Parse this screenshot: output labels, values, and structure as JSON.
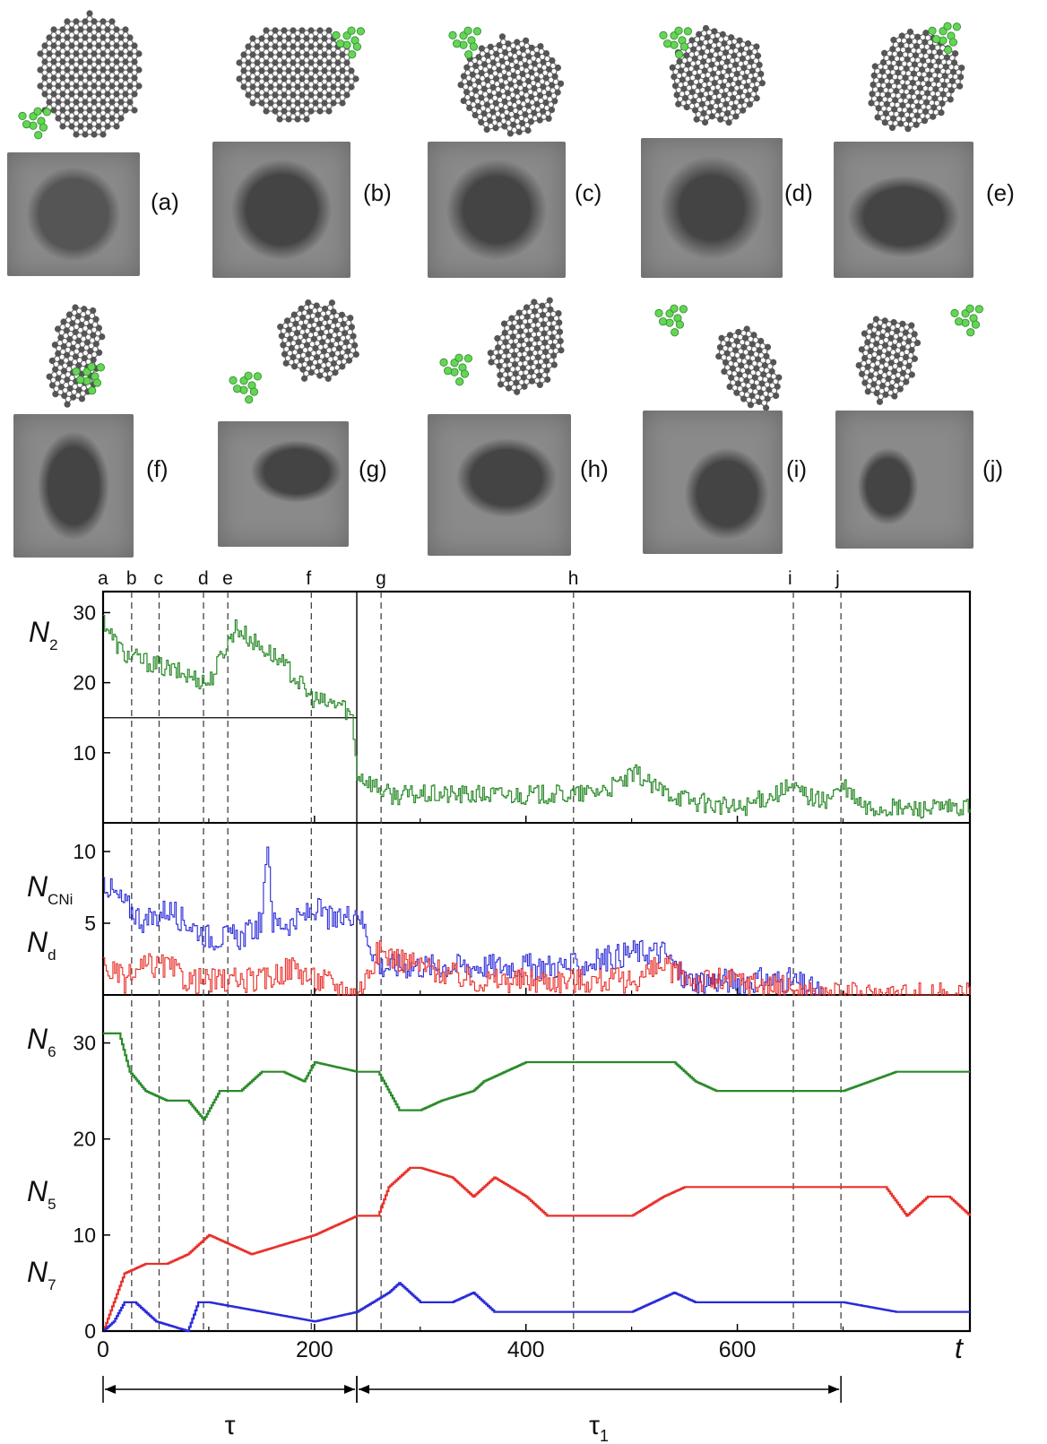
{
  "panels": [
    {
      "id": "a",
      "label": "(a)"
    },
    {
      "id": "b",
      "label": "(b)"
    },
    {
      "id": "c",
      "label": "(c)"
    },
    {
      "id": "d",
      "label": "(d)"
    },
    {
      "id": "e",
      "label": "(e)"
    },
    {
      "id": "f",
      "label": "(f)"
    },
    {
      "id": "g",
      "label": "(g)"
    },
    {
      "id": "h",
      "label": "(h)"
    },
    {
      "id": "i",
      "label": "(i)"
    },
    {
      "id": "j",
      "label": "(j)"
    }
  ],
  "colors": {
    "green": "#2a8a2a",
    "red": "#e8302a",
    "blue": "#2a2ad8",
    "atom": "#555555",
    "atom_green": "#66d455",
    "tem_bg": "#8a8a8a"
  },
  "chart_data": [
    {
      "type": "line",
      "series": [
        {
          "name": "",
          "color": "green",
          "x": [
            0,
            10,
            20,
            40,
            60,
            80,
            100,
            115,
            125,
            140,
            160,
            180,
            195,
            210,
            225,
            235,
            240,
            250,
            270,
            300,
            350,
            400,
            450,
            480,
            505,
            520,
            560,
            600,
            650,
            680,
            700,
            720,
            760,
            800,
            820
          ],
          "y": [
            29,
            26,
            24,
            23,
            22,
            21,
            20,
            25,
            28,
            26,
            24,
            21,
            18,
            17,
            17,
            15,
            7,
            6,
            4,
            4,
            4,
            4,
            4,
            5,
            7,
            5,
            3,
            2,
            5,
            3,
            5,
            2,
            2,
            2,
            2
          ]
        }
      ],
      "ylabel": "N2",
      "yticks": [
        10,
        20,
        30
      ],
      "ylim": [
        0,
        33
      ],
      "reference_line": {
        "y": 15,
        "x": [
          0,
          240
        ]
      },
      "event_markers": [
        {
          "label": "a",
          "x": 0
        },
        {
          "label": "b",
          "x": 27
        },
        {
          "label": "c",
          "x": 53
        },
        {
          "label": "d",
          "x": 95
        },
        {
          "label": "e",
          "x": 118
        },
        {
          "label": "f",
          "x": 197
        },
        {
          "label": "g",
          "x": 263
        },
        {
          "label": "h",
          "x": 445
        },
        {
          "label": "i",
          "x": 653
        },
        {
          "label": "j",
          "x": 698
        }
      ],
      "divider_x": 240
    },
    {
      "type": "line",
      "series": [
        {
          "name": "",
          "color": "blue",
          "x": [
            0,
            10,
            25,
            40,
            60,
            80,
            100,
            130,
            150,
            155,
            160,
            180,
            200,
            220,
            240,
            250,
            260,
            270,
            300,
            350,
            400,
            450,
            500,
            530,
            550,
            600,
            650,
            680
          ],
          "y": [
            8,
            7,
            6,
            5,
            6,
            5,
            4,
            4,
            5,
            11,
            5,
            5,
            6,
            5,
            6,
            4,
            2,
            2,
            2,
            2,
            2,
            2,
            3,
            3,
            1,
            1,
            1,
            0
          ]
        },
        {
          "name": "",
          "color": "red",
          "x": [
            0,
            20,
            40,
            60,
            80,
            100,
            130,
            150,
            180,
            200,
            210,
            240,
            260,
            300,
            350,
            400,
            450,
            500,
            530,
            560,
            600,
            680,
            820
          ],
          "y": [
            2,
            1,
            2,
            2,
            1,
            1,
            1,
            1,
            2,
            1,
            1,
            0,
            3,
            2,
            1,
            1,
            1,
            1,
            2,
            1,
            1,
            0,
            0
          ]
        }
      ],
      "ylabels": [
        "NCNi",
        "Nd"
      ],
      "yticks": [
        5,
        10
      ],
      "ylim": [
        0,
        12
      ]
    },
    {
      "type": "line",
      "series": [
        {
          "name": "",
          "color": "green",
          "x": [
            0,
            15,
            25,
            40,
            60,
            80,
            95,
            110,
            130,
            150,
            170,
            190,
            200,
            240,
            260,
            280,
            300,
            320,
            350,
            360,
            400,
            450,
            500,
            540,
            560,
            580,
            600,
            610,
            650,
            700,
            750,
            800,
            820
          ],
          "y": [
            31,
            31,
            27,
            25,
            24,
            24,
            22,
            25,
            25,
            27,
            27,
            26,
            28,
            27,
            27,
            23,
            23,
            24,
            25,
            26,
            28,
            28,
            28,
            28,
            26,
            25,
            25,
            25,
            25,
            25,
            27,
            27,
            27
          ]
        },
        {
          "name": "",
          "color": "red",
          "x": [
            0,
            10,
            20,
            40,
            60,
            80,
            100,
            120,
            140,
            170,
            200,
            240,
            260,
            270,
            290,
            300,
            330,
            350,
            370,
            400,
            420,
            450,
            500,
            530,
            550,
            600,
            620,
            650,
            700,
            740,
            760,
            780,
            800,
            820
          ],
          "y": [
            0,
            3,
            6,
            7,
            7,
            8,
            10,
            9,
            8,
            9,
            10,
            12,
            12,
            15,
            17,
            17,
            16,
            14,
            16,
            14,
            12,
            12,
            12,
            14,
            15,
            15,
            15,
            15,
            15,
            15,
            12,
            14,
            14,
            12
          ]
        },
        {
          "name": "",
          "color": "blue",
          "x": [
            0,
            10,
            20,
            30,
            40,
            50,
            80,
            90,
            100,
            150,
            200,
            240,
            270,
            280,
            300,
            330,
            350,
            370,
            400,
            450,
            500,
            540,
            560,
            600,
            650,
            700,
            750,
            800,
            820
          ],
          "y": [
            0,
            1,
            3,
            3,
            2,
            1,
            0,
            3,
            3,
            2,
            1,
            2,
            4,
            5,
            3,
            3,
            4,
            2,
            2,
            2,
            2,
            4,
            3,
            3,
            3,
            3,
            2,
            2,
            2
          ]
        }
      ],
      "ylabels": [
        "N6",
        "N5",
        "N7"
      ],
      "yticks": [
        0,
        10,
        20,
        30
      ],
      "ylim": [
        0,
        35
      ],
      "xlabel": "t",
      "xticks": [
        0,
        200,
        400,
        600
      ],
      "xlim": [
        0,
        820
      ]
    }
  ],
  "intervals": [
    {
      "label": "τ",
      "from": 0,
      "to": 240
    },
    {
      "label": "τ1",
      "from": 240,
      "to": 698
    }
  ]
}
